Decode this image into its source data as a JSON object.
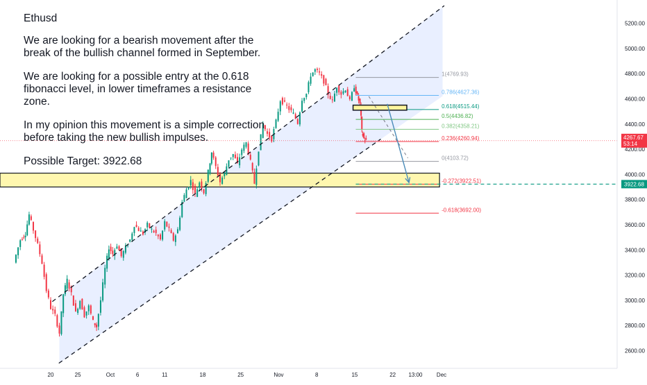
{
  "note": {
    "title": "Ethusd",
    "para1": "We are looking for a bearish movement after the break of the bullish channel formed in September.",
    "para2": "We are looking for a possible entry at the 0.618 fibonacci level, in lower timeframes a resistance zone.",
    "para3": "In my opinion this movement is a simple correction before taking the new bullish impulses.",
    "target": "Possible Target: 3922.68"
  },
  "chart_data": {
    "type": "candlestick",
    "symbol": "Ethusd",
    "ylim": [
      2450,
      5350
    ],
    "y_ticks": [
      2600,
      2800,
      3000,
      3200,
      3400,
      3600,
      3800,
      4000,
      4200,
      4400,
      4600,
      4800,
      5000,
      5200
    ],
    "y_tick_labels": [
      "2600.00",
      "2800.00",
      "3000.00",
      "3200.00",
      "3400.00",
      "3600.00",
      "3800.00",
      "4000.00",
      "4200.00",
      "4400.00",
      "4600.00",
      "4800.00",
      "5000.00",
      "5200.00"
    ],
    "x_ticks": [
      {
        "label": "20",
        "day": 0
      },
      {
        "label": "25",
        "day": 5
      },
      {
        "label": "Oct",
        "day": 11
      },
      {
        "label": "6",
        "day": 16
      },
      {
        "label": "11",
        "day": 21
      },
      {
        "label": "18",
        "day": 28
      },
      {
        "label": "25",
        "day": 35
      },
      {
        "label": "Nov",
        "day": 42
      },
      {
        "label": "8",
        "day": 49
      },
      {
        "label": "15",
        "day": 56
      },
      {
        "label": "22",
        "day": 63
      },
      {
        "label": "13:00",
        "day": 67.2
      },
      {
        "label": "Dec",
        "day": 72
      }
    ],
    "price_path": [
      [
        -6.6,
        3300
      ],
      [
        -5.4,
        3480
      ],
      [
        -4.5,
        3530
      ],
      [
        -3.8,
        3680
      ],
      [
        -3.0,
        3560
      ],
      [
        -2.2,
        3440
      ],
      [
        -1.4,
        3300
      ],
      [
        -0.6,
        3080
      ],
      [
        0.2,
        2940
      ],
      [
        1.0,
        2880
      ],
      [
        1.8,
        2740
      ],
      [
        2.5,
        3050
      ],
      [
        3.2,
        3160
      ],
      [
        4.0,
        3050
      ],
      [
        4.8,
        2900
      ],
      [
        5.6,
        3000
      ],
      [
        6.4,
        2880
      ],
      [
        7.2,
        2950
      ],
      [
        8.0,
        2830
      ],
      [
        8.6,
        2790
      ],
      [
        9.4,
        3000
      ],
      [
        10.2,
        3250
      ],
      [
        10.9,
        3420
      ],
      [
        11.6,
        3370
      ],
      [
        12.4,
        3440
      ],
      [
        13.2,
        3350
      ],
      [
        14.0,
        3420
      ],
      [
        14.8,
        3480
      ],
      [
        15.6,
        3600
      ],
      [
        16.4,
        3560
      ],
      [
        17.2,
        3530
      ],
      [
        18.0,
        3600
      ],
      [
        18.8,
        3560
      ],
      [
        19.6,
        3530
      ],
      [
        20.4,
        3480
      ],
      [
        21.2,
        3620
      ],
      [
        22.0,
        3560
      ],
      [
        22.8,
        3480
      ],
      [
        23.6,
        3560
      ],
      [
        24.4,
        3780
      ],
      [
        25.2,
        3880
      ],
      [
        26.0,
        3950
      ],
      [
        26.8,
        3840
      ],
      [
        27.6,
        3940
      ],
      [
        28.4,
        3860
      ],
      [
        29.2,
        4020
      ],
      [
        29.8,
        4180
      ],
      [
        30.6,
        4060
      ],
      [
        31.4,
        3940
      ],
      [
        32.2,
        4010
      ],
      [
        33.0,
        4120
      ],
      [
        33.8,
        4160
      ],
      [
        34.6,
        4080
      ],
      [
        35.4,
        4200
      ],
      [
        36.2,
        4250
      ],
      [
        37.0,
        4100
      ],
      [
        37.7,
        3930
      ],
      [
        38.5,
        4200
      ],
      [
        39.3,
        4400
      ],
      [
        40.1,
        4320
      ],
      [
        40.9,
        4280
      ],
      [
        41.7,
        4420
      ],
      [
        42.5,
        4590
      ],
      [
        43.3,
        4560
      ],
      [
        44.1,
        4520
      ],
      [
        44.9,
        4480
      ],
      [
        45.7,
        4410
      ],
      [
        46.5,
        4600
      ],
      [
        47.3,
        4640
      ],
      [
        48.1,
        4790
      ],
      [
        48.9,
        4830
      ],
      [
        49.7,
        4800
      ],
      [
        50.5,
        4740
      ],
      [
        51.3,
        4640
      ],
      [
        52.1,
        4580
      ],
      [
        52.9,
        4700
      ],
      [
        53.7,
        4640
      ],
      [
        54.5,
        4680
      ],
      [
        55.3,
        4580
      ],
      [
        56.1,
        4700
      ],
      [
        56.6,
        4620
      ],
      [
        57.1,
        4560
      ],
      [
        57.4,
        4340
      ],
      [
        57.8,
        4285
      ],
      [
        58.2,
        4268
      ]
    ],
    "channel": {
      "upper": [
        [
          0.3,
          2990
        ],
        [
          72.5,
          5340
        ]
      ],
      "lower": [
        [
          1.5,
          2500
        ],
        [
          60.8,
          4280
        ]
      ]
    },
    "support_zone": [
      3900,
      4010
    ],
    "resistance_box": {
      "x": [
        55.7,
        65.6
      ],
      "y": [
        4510,
        4550
      ]
    },
    "fib_x": [
      56.2,
      71.5
    ],
    "fibonacci": [
      {
        "label": "1(4769.93)",
        "value": 4769.93,
        "color": "#9598a1"
      },
      {
        "label": "0.786(4627.36)",
        "value": 4627.36,
        "color": "#64b5f6"
      },
      {
        "label": "0.618(4515.44)",
        "value": 4515.44,
        "color": "#089981"
      },
      {
        "label": "0.5(4436.82)",
        "value": 4436.82,
        "color": "#4caf50"
      },
      {
        "label": "0.382(4358.21)",
        "value": 4358.21,
        "color": "#81c784"
      },
      {
        "label": "0.236(4260.94)",
        "value": 4260.94,
        "color": "#f23645"
      },
      {
        "label": "0(4103.72)",
        "value": 4103.72,
        "color": "#9598a1"
      },
      {
        "label": "-0.272(3922.51)",
        "value": 3922.51,
        "color": "#f23645"
      },
      {
        "label": "-0.618(3692.00)",
        "value": 3692.0,
        "color": "#f23645"
      }
    ],
    "projection_arrow": [
      [
        62.0,
        4560
      ],
      [
        66.0,
        3935
      ]
    ],
    "projection_dash": [
      [
        58.6,
        4620
      ],
      [
        65.8,
        4130
      ]
    ],
    "target": {
      "value": 3922.68,
      "label": "3922.68",
      "color": "#089981"
    },
    "current_price": {
      "value": 4267.67,
      "label": "4267.67",
      "countdown": "53:14",
      "color": "#f23645"
    }
  },
  "colors": {
    "up": "#089981",
    "down": "#f23645",
    "channel_fill": "rgba(41,98,255,0.10)",
    "zone_fill": "#fff59d",
    "axis_text": "#131722",
    "grid_border": "#e0e3eb"
  }
}
